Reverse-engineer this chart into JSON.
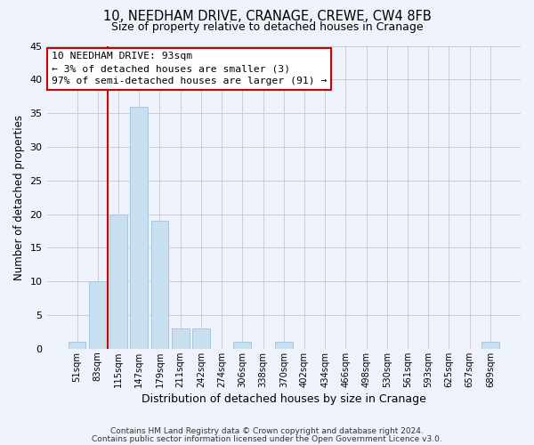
{
  "title": "10, NEEDHAM DRIVE, CRANAGE, CREWE, CW4 8FB",
  "subtitle": "Size of property relative to detached houses in Cranage",
  "xlabel": "Distribution of detached houses by size in Cranage",
  "ylabel": "Number of detached properties",
  "bar_labels": [
    "51sqm",
    "83sqm",
    "115sqm",
    "147sqm",
    "179sqm",
    "211sqm",
    "242sqm",
    "274sqm",
    "306sqm",
    "338sqm",
    "370sqm",
    "402sqm",
    "434sqm",
    "466sqm",
    "498sqm",
    "530sqm",
    "561sqm",
    "593sqm",
    "625sqm",
    "657sqm",
    "689sqm"
  ],
  "bar_values": [
    1,
    10,
    20,
    36,
    19,
    3,
    3,
    0,
    1,
    0,
    1,
    0,
    0,
    0,
    0,
    0,
    0,
    0,
    0,
    0,
    1
  ],
  "bar_color": "#c8dff0",
  "bar_edge_color": "#a8c8e0",
  "highlight_bar_idx": 1,
  "highlight_color": "#cc0000",
  "ylim": [
    0,
    45
  ],
  "yticks": [
    0,
    5,
    10,
    15,
    20,
    25,
    30,
    35,
    40,
    45
  ],
  "annotation_title": "10 NEEDHAM DRIVE: 93sqm",
  "annotation_line1": "← 3% of detached houses are smaller (3)",
  "annotation_line2": "97% of semi-detached houses are larger (91) →",
  "annotation_box_color": "#ffffff",
  "annotation_box_edge": "#cc0000",
  "footer1": "Contains HM Land Registry data © Crown copyright and database right 2024.",
  "footer2": "Contains public sector information licensed under the Open Government Licence v3.0.",
  "grid_color": "#cccccc",
  "bg_color": "#eef2fa",
  "plot_bg_color": "#eef2fa"
}
